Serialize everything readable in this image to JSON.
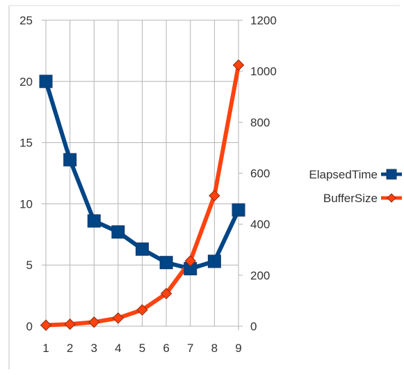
{
  "chart_data": {
    "type": "line",
    "title": "",
    "xlabel": "",
    "ylabel": "",
    "y2label": "",
    "categories": [
      "1",
      "2",
      "3",
      "4",
      "5",
      "6",
      "7",
      "8",
      "9"
    ],
    "ylim": [
      0,
      25
    ],
    "y2lim": [
      0,
      1200
    ],
    "yticks": [
      0,
      5,
      10,
      15,
      20,
      25
    ],
    "y2ticks": [
      0,
      200,
      400,
      600,
      800,
      1000,
      1200
    ],
    "grid": true,
    "legend_position": "right",
    "series": [
      {
        "name": "ElapsedTime",
        "axis": "left",
        "marker": "square",
        "color": "#004586",
        "values": [
          20.0,
          13.6,
          8.6,
          7.7,
          6.3,
          5.2,
          4.7,
          5.3,
          9.5
        ]
      },
      {
        "name": "BufferSize",
        "axis": "right",
        "marker": "diamond",
        "color": "#ff420e",
        "values": [
          4,
          8,
          16,
          32,
          64,
          128,
          256,
          512,
          1024
        ]
      }
    ]
  }
}
